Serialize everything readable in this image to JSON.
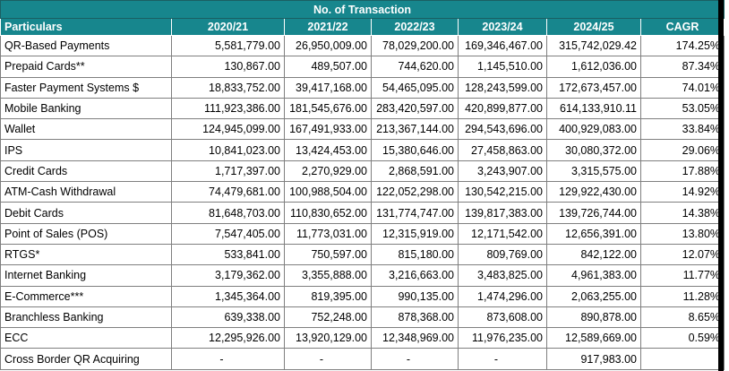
{
  "title": "No. of Transaction",
  "columns": [
    "Particulars",
    "2020/21",
    "2021/22",
    "2022/23",
    "2023/24",
    "2024/25",
    "CAGR"
  ],
  "rows": [
    {
      "label": "QR-Based Payments",
      "values": [
        "5,581,779.00",
        "26,950,009.00",
        "78,029,200.00",
        "169,346,467.00",
        "315,742,029.42"
      ],
      "cagr": "174.25%"
    },
    {
      "label": "Prepaid Cards**",
      "values": [
        "130,867.00",
        "489,507.00",
        "744,620.00",
        "1,145,510.00",
        "1,612,036.00"
      ],
      "cagr": "87.34%"
    },
    {
      "label": "Faster Payment Systems $",
      "values": [
        "18,833,752.00",
        "39,417,168.00",
        "54,465,095.00",
        "128,243,599.00",
        "172,673,457.00"
      ],
      "cagr": "74.01%"
    },
    {
      "label": "Mobile Banking",
      "values": [
        "111,923,386.00",
        "181,545,676.00",
        "283,420,597.00",
        "420,899,877.00",
        "614,133,910.11"
      ],
      "cagr": "53.05%"
    },
    {
      "label": "Wallet",
      "values": [
        "124,945,099.00",
        "167,491,933.00",
        "213,367,144.00",
        "294,543,696.00",
        "400,929,083.00"
      ],
      "cagr": "33.84%"
    },
    {
      "label": "IPS",
      "values": [
        "10,841,023.00",
        "13,424,453.00",
        "15,380,646.00",
        "27,458,863.00",
        "30,080,372.00"
      ],
      "cagr": "29.06%"
    },
    {
      "label": "Credit Cards",
      "values": [
        "1,717,397.00",
        "2,270,929.00",
        "2,868,591.00",
        "3,243,907.00",
        "3,315,575.00"
      ],
      "cagr": "17.88%"
    },
    {
      "label": "ATM-Cash Withdrawal",
      "values": [
        "74,479,681.00",
        "100,988,504.00",
        "122,052,298.00",
        "130,542,215.00",
        "129,922,430.00"
      ],
      "cagr": "14.92%"
    },
    {
      "label": "Debit Cards",
      "values": [
        "81,648,703.00",
        "110,830,652.00",
        "131,774,747.00",
        "139,817,383.00",
        "139,726,744.00"
      ],
      "cagr": "14.38%"
    },
    {
      "label": "Point of Sales (POS)",
      "values": [
        "7,547,405.00",
        "11,773,031.00",
        "12,315,919.00",
        "12,171,542.00",
        "12,656,391.00"
      ],
      "cagr": "13.80%"
    },
    {
      "label": "RTGS*",
      "values": [
        "533,841.00",
        "750,597.00",
        "815,180.00",
        "809,769.00",
        "842,122.00"
      ],
      "cagr": "12.07%"
    },
    {
      "label": "Internet Banking",
      "values": [
        "3,179,362.00",
        "3,355,888.00",
        "3,216,663.00",
        "3,483,825.00",
        "4,961,383.00"
      ],
      "cagr": "11.77%"
    },
    {
      "label": "E-Commerce***",
      "values": [
        "1,345,364.00",
        "819,395.00",
        "990,135.00",
        "1,474,296.00",
        "2,063,255.00"
      ],
      "cagr": "11.28%"
    },
    {
      "label": "Branchless Banking",
      "values": [
        "639,338.00",
        "752,248.00",
        "878,368.00",
        "873,608.00",
        "890,878.00"
      ],
      "cagr": "8.65%"
    },
    {
      "label": "ECC",
      "values": [
        "12,295,926.00",
        "13,920,129.00",
        "12,348,969.00",
        "11,976,235.00",
        "12,589,669.00"
      ],
      "cagr": "0.59%"
    },
    {
      "label": "Cross Border QR Acquiring",
      "values": [
        "-",
        "-",
        "-",
        "-",
        "917,983.00"
      ],
      "cagr": ""
    }
  ],
  "colors": {
    "header_bg": "#17868d",
    "header_text": "#ffffff",
    "grid": "#7f7f7f"
  }
}
